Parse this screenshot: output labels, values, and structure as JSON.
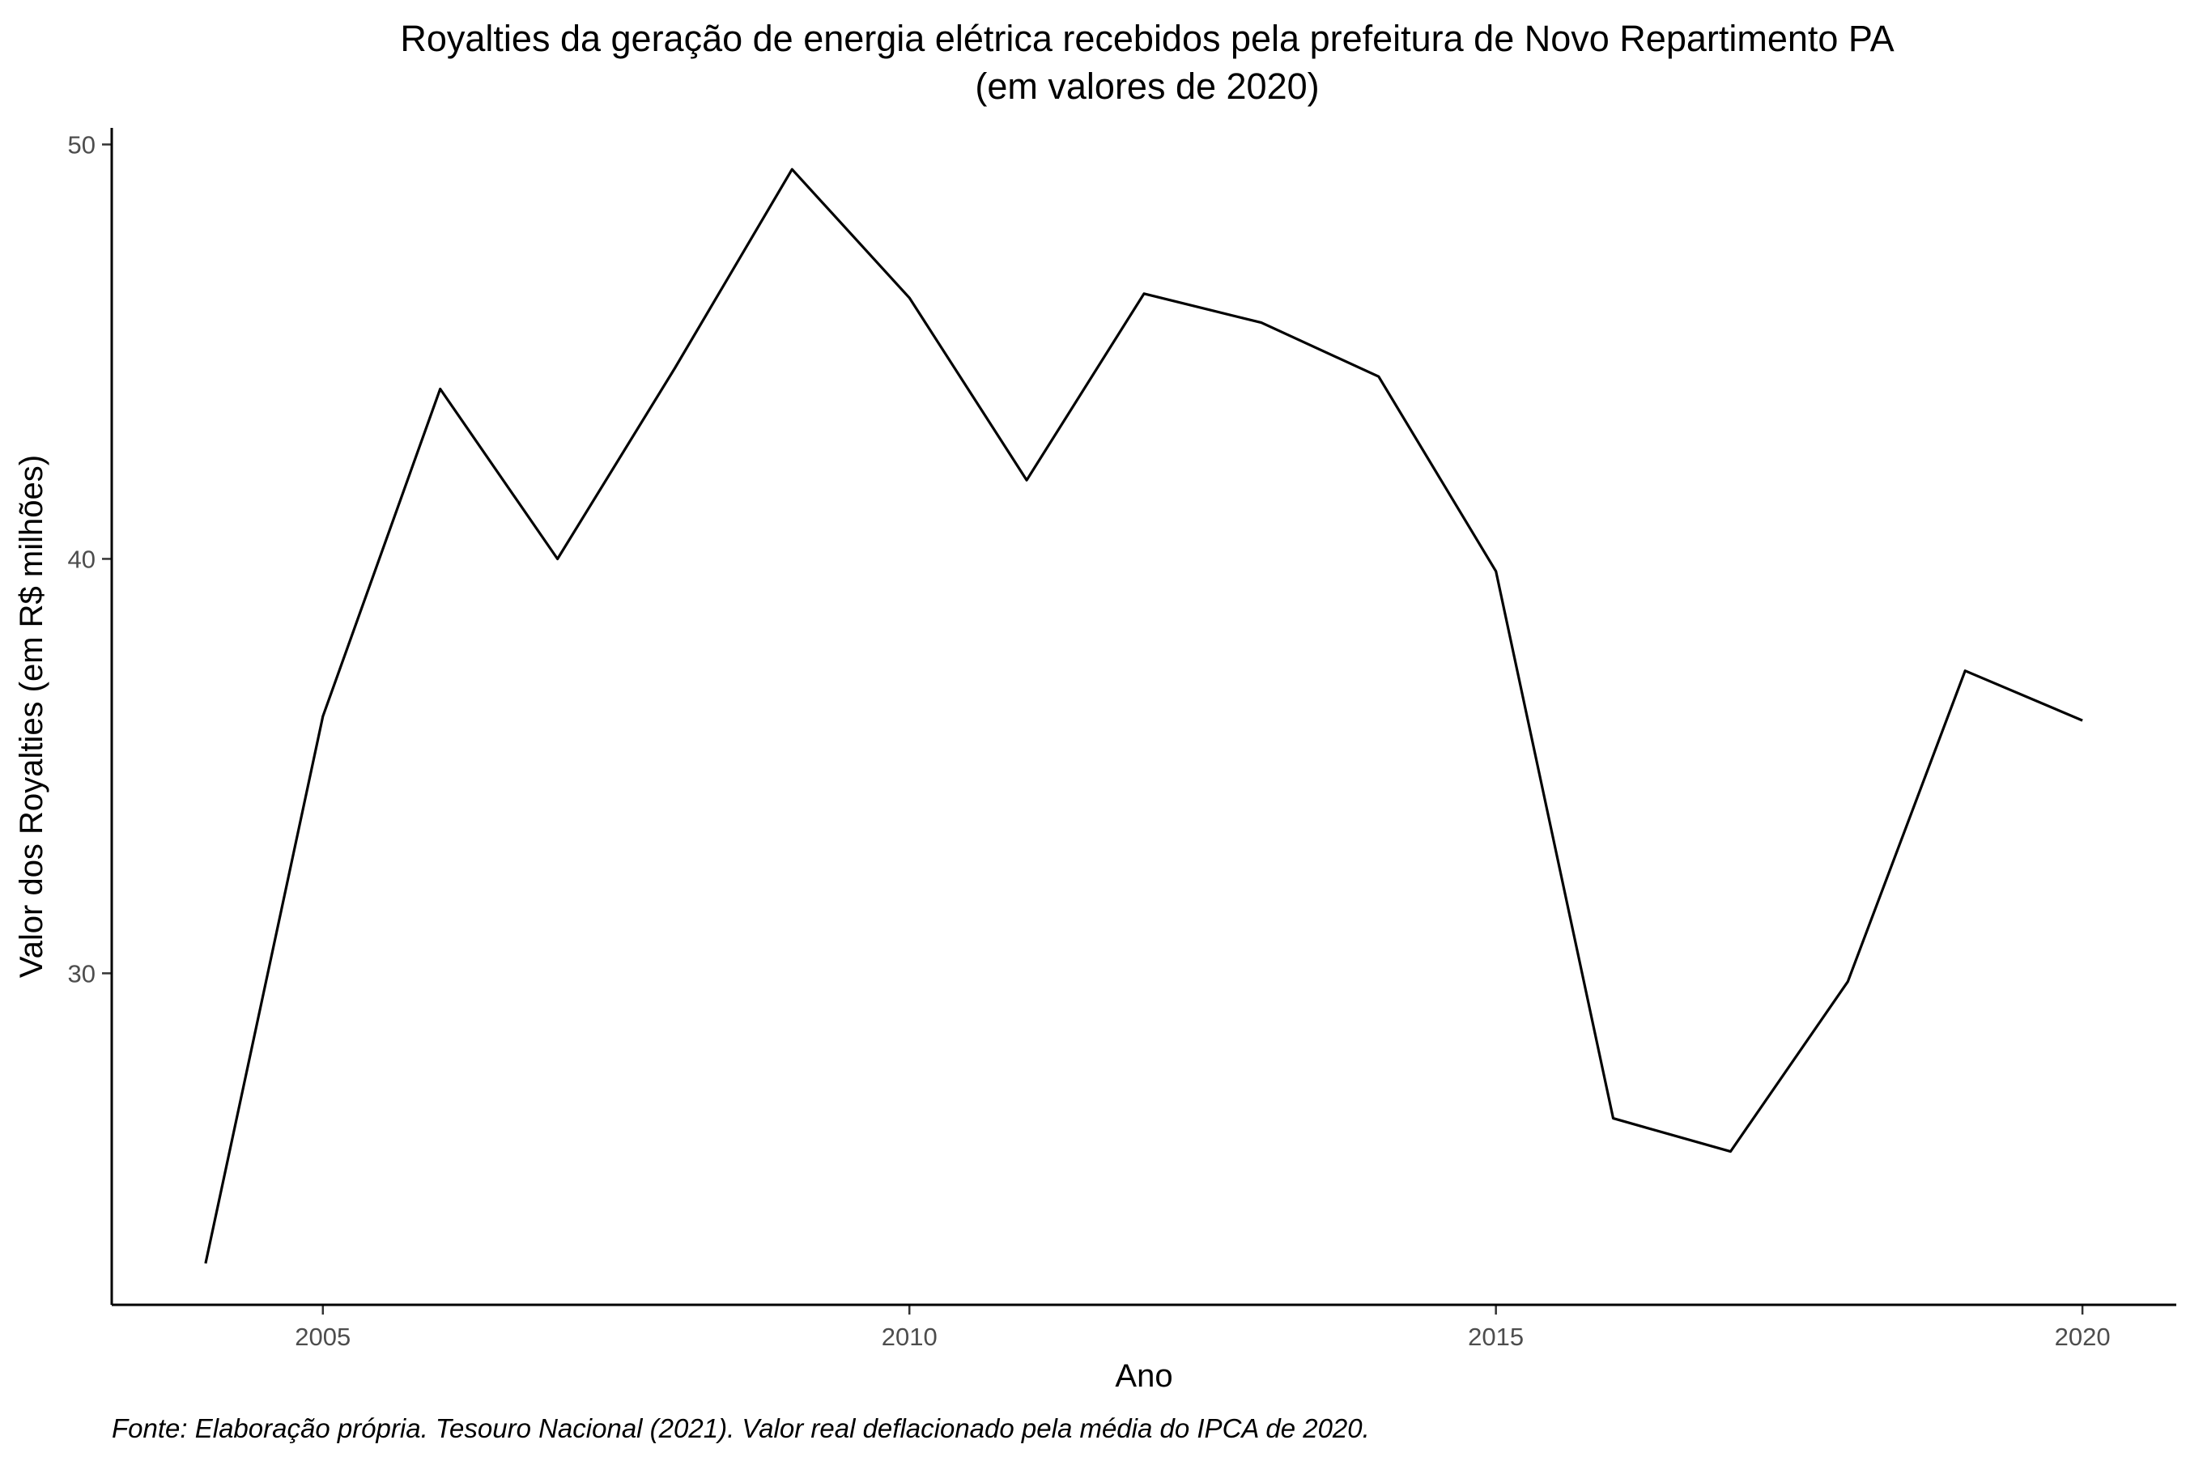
{
  "chart_data": {
    "type": "line",
    "title": "Royalties da geração de energia elétrica recebidos pela prefeitura de Novo Repartimento PA",
    "subtitle": "(em valores de 2020)",
    "xlabel": "Ano",
    "ylabel": "Valor dos Royalties (em R$ milhões)",
    "caption": "Fonte: Elaboração própria. Tesouro Nacional (2021). Valor real deflacionado pela média do IPCA de 2020.",
    "xlim": [
      2003.2,
      2020.8
    ],
    "ylim": [
      22,
      50.4
    ],
    "xticks": [
      2005,
      2010,
      2015,
      2020
    ],
    "yticks": [
      30,
      40,
      50
    ],
    "grid": false,
    "line_color": "#000000",
    "series": [
      {
        "x": [
          2004,
          2005,
          2006,
          2007,
          2008,
          2009,
          2010,
          2011,
          2012,
          2013,
          2014,
          2015,
          2016,
          2017,
          2018,
          2019,
          2020
        ],
        "values": [
          23.0,
          36.2,
          44.1,
          40.0,
          44.6,
          49.4,
          46.3,
          41.9,
          46.4,
          45.7,
          44.4,
          39.7,
          26.5,
          25.7,
          29.8,
          37.3,
          36.1
        ]
      }
    ]
  }
}
